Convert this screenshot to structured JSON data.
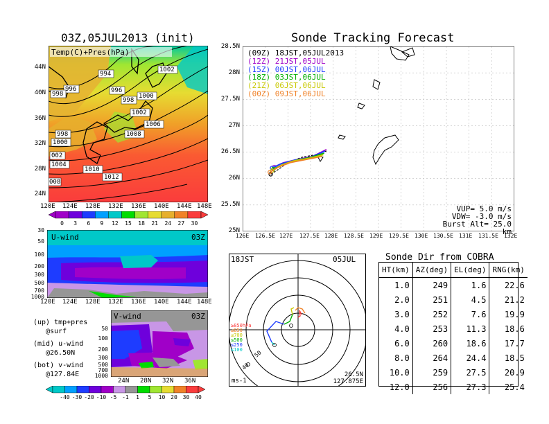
{
  "left_panel": {
    "title": "03Z,05JUL2013 (init)",
    "map_label": "Temp(C)+Pres(hPa)",
    "lat_labels": [
      "44N",
      "40N",
      "36N",
      "32N",
      "28N",
      "24N"
    ],
    "lon_labels": [
      "120E",
      "124E",
      "128E",
      "132E",
      "136E",
      "140E",
      "144E",
      "148E"
    ],
    "pressure_labels": [
      "996",
      "994",
      "998",
      "996",
      "998",
      "1000",
      "1002",
      "1002",
      "1004",
      "1006",
      "1008",
      "998",
      "1000",
      "002",
      "1004",
      "1010",
      "1012",
      "008"
    ],
    "temp_colorbar": [
      "0",
      "3",
      "6",
      "9",
      "12",
      "15",
      "18",
      "21",
      "24",
      "27",
      "30"
    ],
    "temp_colors": [
      "#a000c8",
      "#6e00dc",
      "#1e3cff",
      "#00a0ff",
      "#00c8c8",
      "#00dc00",
      "#a0e632",
      "#e6dc32",
      "#e6af2d",
      "#f08228",
      "#fa3c3c"
    ]
  },
  "uwind_panel": {
    "label": "U-wind",
    "time": "03Z",
    "y_labels": [
      "30",
      "50",
      "100",
      "200",
      "300",
      "500",
      "700",
      "1000"
    ],
    "x_labels": [
      "120E",
      "124E",
      "128E",
      "132E",
      "136E",
      "140E",
      "144E",
      "148E"
    ]
  },
  "vwind_panel": {
    "label": "V-wind",
    "time": "03Z",
    "y_labels": [
      "50",
      "100",
      "200",
      "300",
      "500",
      "700",
      "1000"
    ],
    "x_labels": [
      "24N",
      "28N",
      "32N",
      "36N"
    ],
    "colorbar": [
      "-40",
      "-30",
      "-20",
      "-10",
      "-5",
      "-1",
      "1",
      "5",
      "10",
      "20",
      "30",
      "40"
    ],
    "colors": [
      "#00c8c8",
      "#00a0ff",
      "#1e3cff",
      "#6e00dc",
      "#a000c8",
      "#c896e6",
      "#969696",
      "#00dc00",
      "#a0e632",
      "#e6dc32",
      "#f08228",
      "#fa3c3c"
    ]
  },
  "legend_notes": [
    "(up) tmp+pres",
    "@surf",
    "(mid) u-wind",
    "@26.50N",
    "(bot) v-wind",
    "@127.84E"
  ],
  "track_panel": {
    "title": "Sonde Tracking Forecast",
    "entries": [
      {
        "tag": "(09Z)",
        "time": "18JST,05JUL2013",
        "color": "#000000"
      },
      {
        "tag": "(12Z)",
        "time": "21JST,05JUL",
        "color": "#a000c8"
      },
      {
        "tag": "(15Z)",
        "time": "00JST,06JUL",
        "color": "#1e3cff"
      },
      {
        "tag": "(18Z)",
        "time": "03JST,06JUL",
        "color": "#00b000"
      },
      {
        "tag": "(21Z)",
        "time": "06JST,06JUL",
        "color": "#c8c800"
      },
      {
        "tag": "(00Z)",
        "time": "09JST,06JUL",
        "color": "#f08228"
      }
    ],
    "lat_labels": [
      "28.5N",
      "28N",
      "27.5N",
      "27N",
      "26.5N",
      "26N",
      "25.5N",
      "25N"
    ],
    "lon_labels": [
      "126E",
      "126.5E",
      "127E",
      "127.5E",
      "128E",
      "128.5E",
      "129E",
      "129.5E",
      "130E",
      "130.5E",
      "131E",
      "131.5E",
      "132E"
    ],
    "vup": "VUP= 5.0 m/s",
    "vdw": "VDW= -3.0 m/s",
    "burst": "Burst Alt= 25.0 km"
  },
  "hodograph": {
    "time_left": "18JST",
    "time_right": "05JUL",
    "lat": "26.5N",
    "lon": "127.875E",
    "unit": "ms-1",
    "ring_labels": [
      "50",
      "40"
    ],
    "levels": [
      {
        "label": "≥850hPa",
        "color": "#fa3c3c"
      },
      {
        "label": "≤850",
        "color": "#f08228"
      },
      {
        "label": "≤700",
        "color": "#c8c800"
      },
      {
        "label": "≤500",
        "color": "#00b000"
      },
      {
        "label": "≤250",
        "color": "#1e3cff"
      },
      {
        "label": "≤100",
        "color": "#00c8c8"
      }
    ]
  },
  "sonde_table": {
    "title": "Sonde Dir from COBRA",
    "headers": [
      "HT(km)",
      "AZ(deg)",
      "EL(deg)",
      "RNG(km)"
    ],
    "rows": [
      [
        "1.0",
        "249",
        "1.6",
        "22.6"
      ],
      [
        "2.0",
        "251",
        "4.5",
        "21.2"
      ],
      [
        "3.0",
        "252",
        "7.6",
        "19.9"
      ],
      [
        "4.0",
        "253",
        "11.3",
        "18.6"
      ],
      [
        "6.0",
        "260",
        "18.6",
        "17.7"
      ],
      [
        "8.0",
        "264",
        "24.4",
        "18.5"
      ],
      [
        "10.0",
        "259",
        "27.5",
        "20.9"
      ],
      [
        "12.0",
        "256",
        "27.3",
        "25.4"
      ]
    ]
  },
  "chart_data": [
    {
      "type": "heatmap",
      "title": "03Z,05JUL2013 (init)",
      "subtitle": "Temp(C)+Pres(hPa)",
      "xlabel": "",
      "ylabel": "",
      "x_range": [
        "120E",
        "148E"
      ],
      "y_range": [
        "24N",
        "44N"
      ],
      "colorbar": [
        0,
        3,
        6,
        9,
        12,
        15,
        18,
        21,
        24,
        27,
        30
      ]
    },
    {
      "type": "heatmap",
      "title": "U-wind",
      "x_range": [
        "120E",
        "148E"
      ],
      "y_levels_hPa": [
        30,
        50,
        100,
        200,
        300,
        500,
        700,
        1000
      ]
    },
    {
      "type": "heatmap",
      "title": "V-wind",
      "x_range": [
        "24N",
        "36N"
      ],
      "y_levels_hPa": [
        50,
        100,
        200,
        300,
        500,
        700,
        1000
      ],
      "colorbar": [
        -40,
        -30,
        -20,
        -10,
        -5,
        -1,
        1,
        5,
        10,
        20,
        30,
        40
      ]
    },
    {
      "type": "line",
      "title": "Sonde Tracking Forecast",
      "xlim": [
        126,
        132
      ],
      "ylim": [
        25,
        28.5
      ],
      "series": [
        {
          "name": "(09Z) 18JST,05JUL2013",
          "x": [
            127.85,
            127.6,
            127.3,
            127.0,
            126.8,
            126.62
          ],
          "y": [
            26.52,
            26.45,
            26.4,
            26.3,
            26.18,
            26.08
          ]
        },
        {
          "name": "(12Z) 21JST,05JUL",
          "x": [
            127.85,
            127.55,
            127.2,
            126.9,
            126.7
          ],
          "y": [
            26.55,
            26.42,
            26.36,
            26.3,
            26.22
          ]
        },
        {
          "name": "(15Z) 00JST,06JUL",
          "x": [
            127.82,
            127.5,
            127.15,
            126.85,
            126.65
          ],
          "y": [
            26.52,
            26.4,
            26.35,
            26.28,
            26.2
          ]
        },
        {
          "name": "(18Z) 03JST,06JUL",
          "x": [
            127.8,
            127.5,
            127.2,
            126.9,
            126.68
          ],
          "y": [
            26.48,
            26.4,
            26.35,
            26.27,
            26.18
          ]
        },
        {
          "name": "(21Z) 06JST,06JUL",
          "x": [
            127.78,
            127.45,
            127.1,
            126.85,
            126.65
          ],
          "y": [
            26.45,
            26.38,
            26.33,
            26.25,
            26.15
          ]
        },
        {
          "name": "(00Z) 09JST,06JUL",
          "x": [
            127.75,
            127.4,
            127.05,
            126.8,
            126.6
          ],
          "y": [
            26.42,
            26.36,
            26.3,
            26.22,
            26.12
          ]
        }
      ]
    },
    {
      "type": "table",
      "title": "Sonde Dir from COBRA",
      "columns": [
        "HT(km)",
        "AZ(deg)",
        "EL(deg)",
        "RNG(km)"
      ],
      "rows": [
        [
          1.0,
          249,
          1.6,
          22.6
        ],
        [
          2.0,
          251,
          4.5,
          21.2
        ],
        [
          3.0,
          252,
          7.6,
          19.9
        ],
        [
          4.0,
          253,
          11.3,
          18.6
        ],
        [
          6.0,
          260,
          18.6,
          17.7
        ],
        [
          8.0,
          264,
          24.4,
          18.5
        ],
        [
          10.0,
          259,
          27.5,
          20.9
        ],
        [
          12.0,
          256,
          27.3,
          25.4
        ]
      ]
    }
  ]
}
